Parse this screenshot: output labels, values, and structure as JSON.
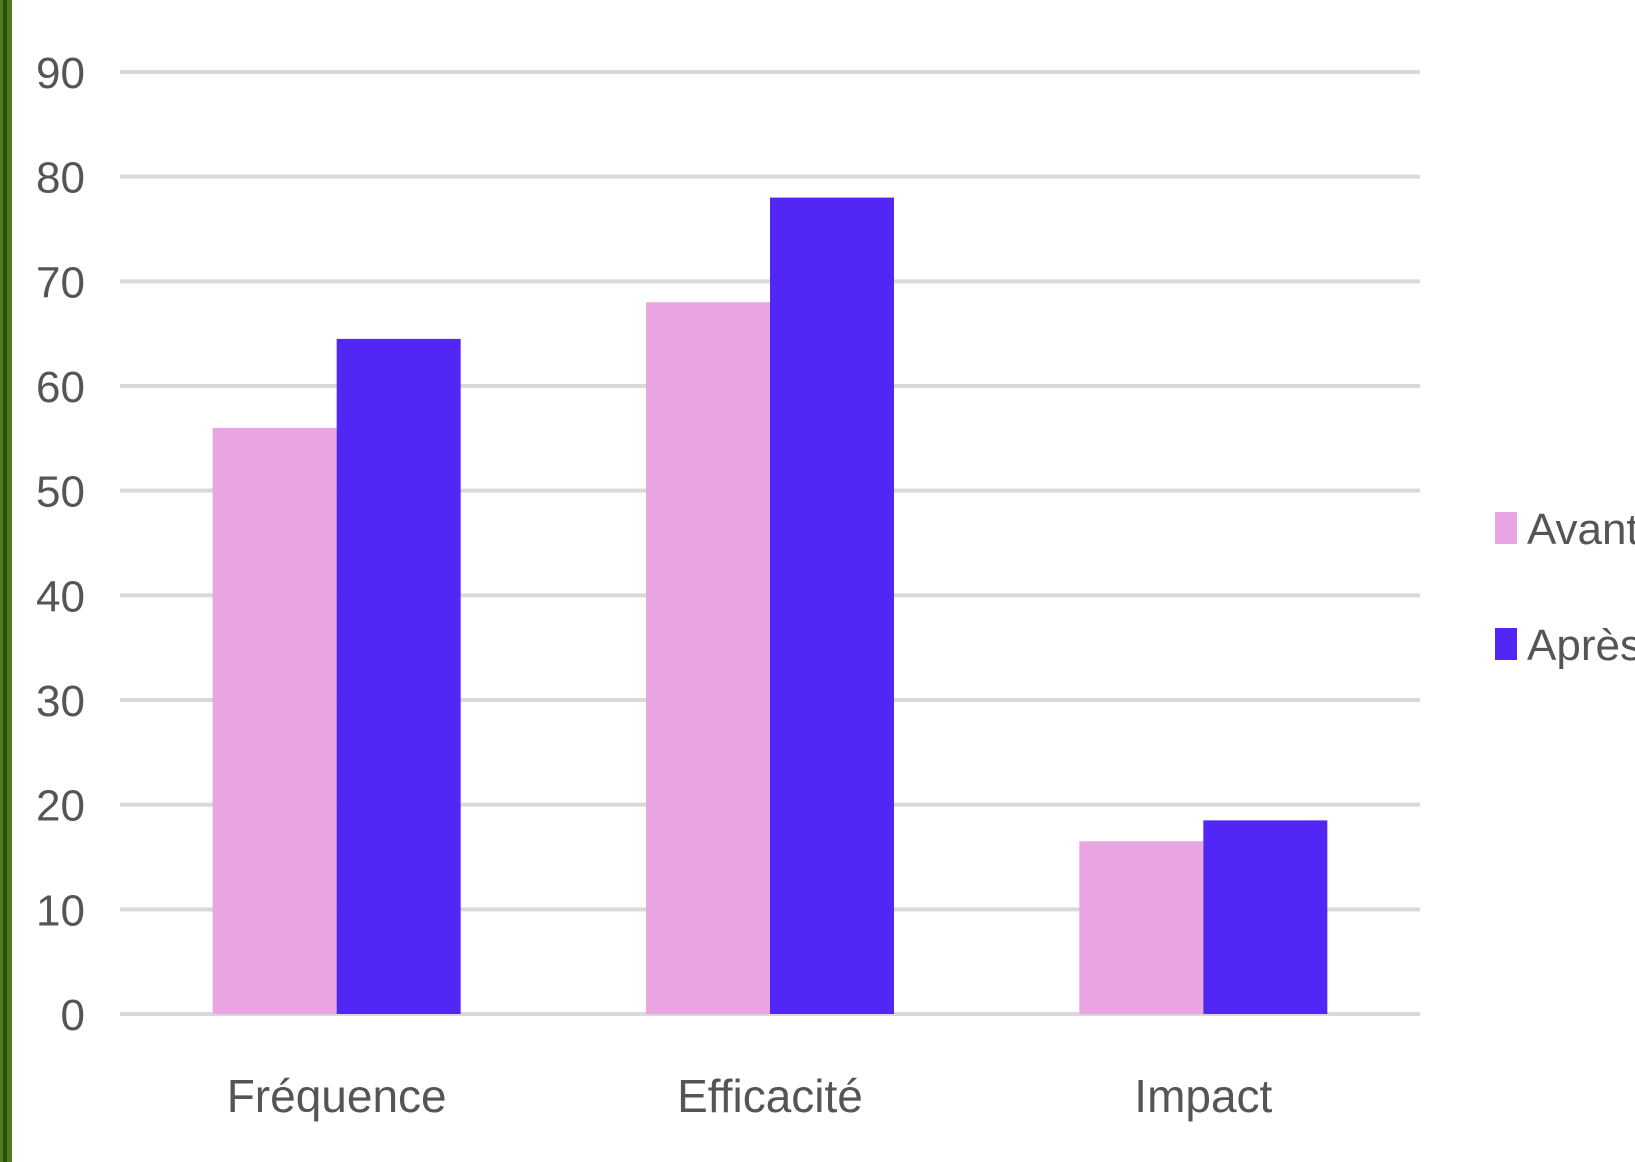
{
  "chart_data": {
    "type": "bar",
    "categories": [
      "Fréquence",
      "Efficacité",
      "Impact"
    ],
    "series": [
      {
        "name": "Avant",
        "values": [
          56,
          68,
          16.5
        ],
        "color": "#e8a5e2"
      },
      {
        "name": "Après",
        "values": [
          64.5,
          78,
          18.5
        ],
        "color": "#5226f5"
      }
    ],
    "yticks": [
      "0",
      "10",
      "20",
      "30",
      "40",
      "50",
      "60",
      "70",
      "80",
      "90"
    ],
    "ylim": [
      0,
      90
    ],
    "grid": true,
    "legend_position": "right",
    "gridline_color": "#d9d9d9",
    "frame_color": "#4f7a1c"
  }
}
